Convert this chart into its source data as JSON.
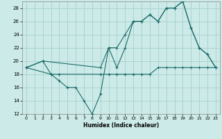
{
  "xlabel": "Humidex (Indice chaleur)",
  "bg_color": "#cceae7",
  "grid_color": "#aad4d0",
  "line_color": "#1a6b6b",
  "xlim": [
    -0.5,
    23.5
  ],
  "ylim": [
    12,
    29
  ],
  "xticks": [
    0,
    1,
    2,
    3,
    4,
    5,
    6,
    7,
    8,
    9,
    10,
    11,
    12,
    13,
    14,
    15,
    16,
    17,
    18,
    19,
    20,
    21,
    22,
    23
  ],
  "yticks": [
    12,
    14,
    16,
    18,
    20,
    22,
    24,
    26,
    28
  ],
  "line1_x": [
    0,
    2,
    3,
    4,
    5,
    6,
    7,
    8,
    9,
    10,
    11,
    12,
    13,
    14,
    15,
    16,
    17,
    18,
    19,
    20,
    21,
    22,
    23
  ],
  "line1_y": [
    19,
    20,
    18,
    17,
    16,
    16,
    14,
    12,
    15,
    22,
    19,
    22,
    26,
    26,
    27,
    26,
    28,
    28,
    29,
    25,
    22,
    21,
    19
  ],
  "line2_x": [
    0,
    2,
    9,
    10,
    11,
    12,
    13,
    14,
    15,
    16,
    17,
    18,
    19,
    20,
    21,
    22,
    23
  ],
  "line2_y": [
    19,
    20,
    19,
    22,
    22,
    24,
    26,
    26,
    27,
    26,
    28,
    28,
    29,
    25,
    22,
    21,
    19
  ],
  "line3_x": [
    0,
    3,
    4,
    9,
    10,
    11,
    12,
    13,
    14,
    15,
    16,
    17,
    18,
    19,
    20,
    21,
    22,
    23
  ],
  "line3_y": [
    19,
    18,
    18,
    18,
    18,
    18,
    18,
    18,
    18,
    18,
    19,
    19,
    19,
    19,
    19,
    19,
    19,
    19
  ]
}
